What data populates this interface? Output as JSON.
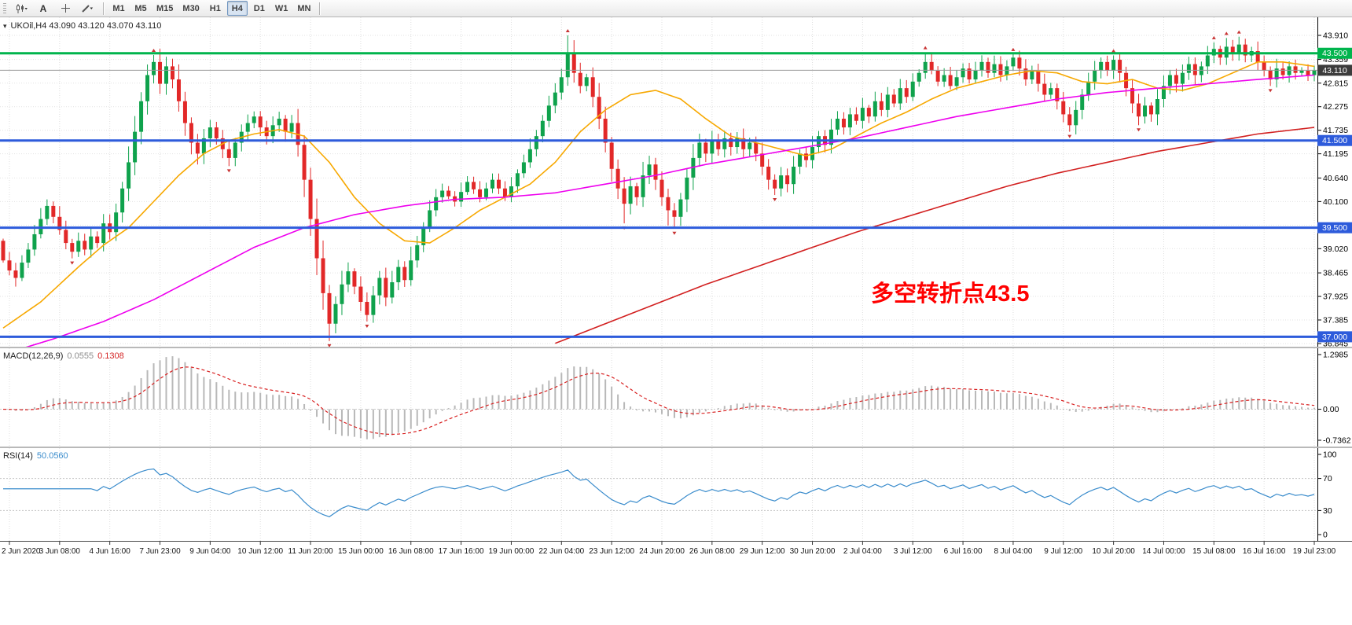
{
  "toolbar": {
    "tools": [
      {
        "name": "chart-type-tool",
        "glyph": "candles"
      },
      {
        "name": "text-tool",
        "glyph": "A"
      },
      {
        "name": "crosshair-tool",
        "glyph": "crosshair"
      },
      {
        "name": "draw-tool",
        "glyph": "pencil"
      }
    ],
    "timeframes": [
      "M1",
      "M5",
      "M15",
      "M30",
      "H1",
      "H4",
      "D1",
      "W1",
      "MN"
    ],
    "active_timeframe": "H4"
  },
  "chart": {
    "symbol_title": "UKOil,H4 43.090 43.120 43.070 43.110",
    "annotation": {
      "text": "多空转折点43.5",
      "color": "#ff0000"
    },
    "price_axis_labels": [
      "43.910",
      "43.359",
      "42.815",
      "42.275",
      "41.735",
      "41.195",
      "40.640",
      "40.100",
      "39.560",
      "39.020",
      "38.465",
      "37.925",
      "37.385",
      "36.845"
    ],
    "hlines": [
      {
        "price": 43.5,
        "label": "43.500",
        "color": "#00b44c",
        "line_width": 3
      },
      {
        "price": 41.5,
        "label": "41.500",
        "color": "#2d5bdb",
        "line_width": 3
      },
      {
        "price": 39.5,
        "label": "39.500",
        "color": "#2d5bdb",
        "line_width": 3
      },
      {
        "price": 37.0,
        "label": "37.000",
        "color": "#2d5bdb",
        "line_width": 3
      }
    ],
    "bid": {
      "price": 43.11,
      "label": "43.110",
      "line_color": "#9a9a9a",
      "badge_color": "#3c3c3c"
    }
  },
  "chart_data": {
    "type": "candlestick",
    "symbol": "UKOil",
    "timeframe": "H4",
    "ylim": [
      36.7,
      44.32
    ],
    "up_color": "#0fa24c",
    "down_color": "#e22828",
    "x_labels": [
      "2 Jun 2020",
      "3 Jun 08:00",
      "4 Jun 16:00",
      "7 Jun 23:00",
      "9 Jun 04:00",
      "10 Jun 12:00",
      "11 Jun 20:00",
      "15 Jun 00:00",
      "16 Jun 08:00",
      "17 Jun 16:00",
      "19 Jun 00:00",
      "22 Jun 04:00",
      "23 Jun 12:00",
      "24 Jun 20:00",
      "26 Jun 08:00",
      "29 Jun 12:00",
      "30 Jun 20:00",
      "2 Jul 04:00",
      "3 Jul 12:00",
      "6 Jul 16:00",
      "8 Jul 04:00",
      "9 Jul 12:00",
      "10 Jul 20:00",
      "14 Jul 00:00",
      "15 Jul 08:00",
      "16 Jul 16:00",
      "19 Jul 23:00"
    ],
    "candles": {
      "first_open": 39.2,
      "closes": [
        38.75,
        38.52,
        38.35,
        38.7,
        39.0,
        39.35,
        39.7,
        40.0,
        39.75,
        39.45,
        39.15,
        38.95,
        39.2,
        39.0,
        39.3,
        39.15,
        39.6,
        39.4,
        39.85,
        40.4,
        41.0,
        41.7,
        42.4,
        43.0,
        43.3,
        42.8,
        43.2,
        42.9,
        42.4,
        41.9,
        41.45,
        41.2,
        41.55,
        41.8,
        41.55,
        41.3,
        41.1,
        41.45,
        41.7,
        41.9,
        42.05,
        41.8,
        41.6,
        41.85,
        42.0,
        41.7,
        41.9,
        41.4,
        40.6,
        39.7,
        38.8,
        38.0,
        37.3,
        37.75,
        38.2,
        38.5,
        38.15,
        37.8,
        37.5,
        37.95,
        38.35,
        37.9,
        38.25,
        38.6,
        38.3,
        38.75,
        39.1,
        39.5,
        39.9,
        40.2,
        40.35,
        40.22,
        40.1,
        40.32,
        40.55,
        40.38,
        40.2,
        40.4,
        40.6,
        40.4,
        40.2,
        40.45,
        40.75,
        41.0,
        41.3,
        41.6,
        41.95,
        42.3,
        42.6,
        42.95,
        43.5,
        43.05,
        42.75,
        42.95,
        42.5,
        42.0,
        41.45,
        40.85,
        40.4,
        40.05,
        40.45,
        40.2,
        40.7,
        40.95,
        40.6,
        40.2,
        39.9,
        39.75,
        40.15,
        40.65,
        41.1,
        41.45,
        41.2,
        41.5,
        41.3,
        41.55,
        41.35,
        41.55,
        41.3,
        41.45,
        41.2,
        40.9,
        40.6,
        40.4,
        40.7,
        40.5,
        40.9,
        41.2,
        41.05,
        41.35,
        41.6,
        41.4,
        41.75,
        42.0,
        41.8,
        42.1,
        41.95,
        42.25,
        42.05,
        42.4,
        42.2,
        42.55,
        42.35,
        42.7,
        42.5,
        42.85,
        43.05,
        43.3,
        43.1,
        42.85,
        43.0,
        42.75,
        42.95,
        43.15,
        42.9,
        43.1,
        43.3,
        43.05,
        43.25,
        43.0,
        43.2,
        43.4,
        43.15,
        42.9,
        43.1,
        42.8,
        42.55,
        42.7,
        42.4,
        42.1,
        41.85,
        42.2,
        42.55,
        42.85,
        43.1,
        43.3,
        43.1,
        43.35,
        43.05,
        42.7,
        42.35,
        42.05,
        42.3,
        42.1,
        42.45,
        42.75,
        43.0,
        42.8,
        43.05,
        43.25,
        43.0,
        43.2,
        43.45,
        43.6,
        43.4,
        43.65,
        43.5,
        43.7,
        43.45,
        43.55,
        43.3,
        43.1,
        42.9,
        43.15,
        43.0,
        43.2,
        43.05,
        43.1,
        43.0,
        43.11
      ],
      "overrides": {
        "2": {
          "l": 38.15
        },
        "7": {
          "h": 40.15
        },
        "24": {
          "h": 43.46
        },
        "26": {
          "h": 43.42
        },
        "31": {
          "l": 40.95
        },
        "52": {
          "l": 36.9
        },
        "58": {
          "l": 37.35
        },
        "90": {
          "h": 43.91
        },
        "91": {
          "h": 43.8
        },
        "99": {
          "l": 39.6
        },
        "106": {
          "l": 39.55
        },
        "107": {
          "l": 39.48
        },
        "123": {
          "l": 40.25
        },
        "147": {
          "h": 43.52
        },
        "161": {
          "h": 43.48
        },
        "170": {
          "l": 41.7
        },
        "177": {
          "h": 43.45
        },
        "181": {
          "l": 41.85
        },
        "193": {
          "h": 43.75
        },
        "195": {
          "h": 43.85
        },
        "197": {
          "h": 43.88
        },
        "202": {
          "l": 42.75
        }
      }
    },
    "fractals": {
      "up": [
        24,
        90,
        147,
        161,
        177,
        193,
        195,
        197
      ],
      "down": [
        11,
        36,
        52,
        58,
        99,
        107,
        123,
        170,
        181,
        202
      ]
    },
    "moving_averages": [
      {
        "name": "ma-fast-orange",
        "color": "#f7a800",
        "points": [
          [
            0,
            37.2
          ],
          [
            6,
            37.8
          ],
          [
            12,
            38.6
          ],
          [
            16,
            39.1
          ],
          [
            20,
            39.5
          ],
          [
            24,
            40.1
          ],
          [
            28,
            40.7
          ],
          [
            32,
            41.2
          ],
          [
            36,
            41.5
          ],
          [
            40,
            41.65
          ],
          [
            44,
            41.75
          ],
          [
            48,
            41.6
          ],
          [
            52,
            41.0
          ],
          [
            56,
            40.2
          ],
          [
            60,
            39.6
          ],
          [
            64,
            39.2
          ],
          [
            68,
            39.15
          ],
          [
            72,
            39.5
          ],
          [
            76,
            39.9
          ],
          [
            80,
            40.2
          ],
          [
            84,
            40.5
          ],
          [
            88,
            41.0
          ],
          [
            92,
            41.7
          ],
          [
            96,
            42.2
          ],
          [
            100,
            42.55
          ],
          [
            104,
            42.65
          ],
          [
            108,
            42.45
          ],
          [
            112,
            42.0
          ],
          [
            116,
            41.6
          ],
          [
            120,
            41.45
          ],
          [
            124,
            41.3
          ],
          [
            128,
            41.15
          ],
          [
            132,
            41.3
          ],
          [
            136,
            41.6
          ],
          [
            140,
            41.9
          ],
          [
            144,
            42.15
          ],
          [
            148,
            42.45
          ],
          [
            152,
            42.7
          ],
          [
            156,
            42.85
          ],
          [
            160,
            43.0
          ],
          [
            164,
            43.1
          ],
          [
            168,
            43.05
          ],
          [
            172,
            42.85
          ],
          [
            176,
            42.8
          ],
          [
            180,
            42.9
          ],
          [
            184,
            42.7
          ],
          [
            188,
            42.65
          ],
          [
            192,
            42.8
          ],
          [
            196,
            43.05
          ],
          [
            200,
            43.3
          ],
          [
            204,
            43.3
          ],
          [
            209,
            43.2
          ]
        ]
      },
      {
        "name": "ma-mid-magenta",
        "color": "#ee00ee",
        "points": [
          [
            0,
            36.6
          ],
          [
            8,
            36.95
          ],
          [
            16,
            37.35
          ],
          [
            24,
            37.85
          ],
          [
            32,
            38.45
          ],
          [
            40,
            39.05
          ],
          [
            48,
            39.5
          ],
          [
            56,
            39.8
          ],
          [
            64,
            40.0
          ],
          [
            72,
            40.15
          ],
          [
            80,
            40.2
          ],
          [
            88,
            40.3
          ],
          [
            96,
            40.5
          ],
          [
            104,
            40.7
          ],
          [
            112,
            40.95
          ],
          [
            120,
            41.15
          ],
          [
            128,
            41.35
          ],
          [
            136,
            41.55
          ],
          [
            144,
            41.8
          ],
          [
            152,
            42.05
          ],
          [
            160,
            42.25
          ],
          [
            168,
            42.45
          ],
          [
            176,
            42.6
          ],
          [
            184,
            42.7
          ],
          [
            192,
            42.8
          ],
          [
            200,
            42.9
          ],
          [
            209,
            43.0
          ]
        ]
      },
      {
        "name": "ma-slow-red",
        "color": "#d22020",
        "points": [
          [
            88,
            36.85
          ],
          [
            96,
            37.3
          ],
          [
            104,
            37.75
          ],
          [
            112,
            38.2
          ],
          [
            120,
            38.6
          ],
          [
            128,
            39.0
          ],
          [
            136,
            39.4
          ],
          [
            144,
            39.75
          ],
          [
            152,
            40.1
          ],
          [
            160,
            40.45
          ],
          [
            168,
            40.75
          ],
          [
            176,
            41.0
          ],
          [
            184,
            41.25
          ],
          [
            192,
            41.45
          ],
          [
            200,
            41.65
          ],
          [
            209,
            41.8
          ]
        ]
      }
    ],
    "macd": {
      "name": "MACD(12,26,9)",
      "value_main": "0.0555",
      "value_signal": "0.1308",
      "params": [
        12,
        26,
        9
      ],
      "scale_labels": [
        "1.2985",
        "0.00",
        "-0.7362"
      ],
      "hist_color": "#b8b8b8",
      "signal_color": "#d82020"
    },
    "rsi": {
      "name": "RSI(14)",
      "value": "50.0560",
      "period": 14,
      "scale_labels": [
        "100",
        "70",
        "30",
        "0"
      ],
      "levels": [
        70,
        30
      ],
      "color": "#3a8ccc"
    }
  }
}
